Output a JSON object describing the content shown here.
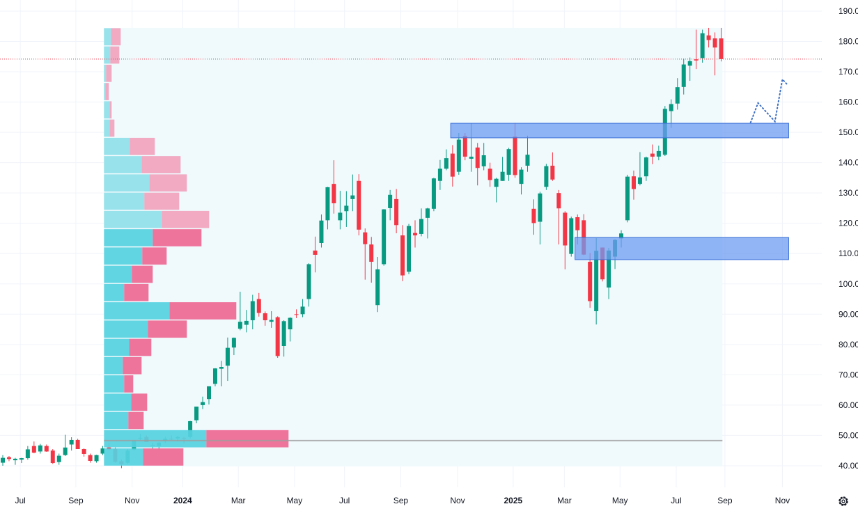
{
  "chart_data": {
    "type": "candlestick",
    "interval": "weekly",
    "title": "",
    "colors": {
      "up": "#089981",
      "down": "#f23645",
      "zone": "#6d9cf2",
      "zone_border": "#3b6fd6",
      "profile_up": "#56d1e0",
      "profile_down": "#ee6d97",
      "profile_up_light": "#90dfe9",
      "profile_down_light": "#f0a5bf",
      "profile_bg": "#f0fafd",
      "projection": "#3d6fc4",
      "poc": "#9e9e9e"
    },
    "y_axis": {
      "min": 40,
      "max": 190,
      "step": 10,
      "tick_labels": [
        "40.00",
        "50.00",
        "60.00",
        "70.00",
        "80.00",
        "90.00",
        "100.00",
        "110.00",
        "120.00",
        "130.00",
        "140.00",
        "150.00",
        "160.00",
        "170.00",
        "180.00",
        "190.00"
      ]
    },
    "x_axis": {
      "ticks": [
        {
          "label": "Jul",
          "week": 2.8,
          "year": false
        },
        {
          "label": "Sep",
          "week": 11.7,
          "year": false
        },
        {
          "label": "Nov",
          "week": 20.7,
          "year": false
        },
        {
          "label": "2024",
          "week": 28.8,
          "year": true
        },
        {
          "label": "Mar",
          "week": 37.7,
          "year": false
        },
        {
          "label": "May",
          "week": 46.7,
          "year": false
        },
        {
          "label": "Jul",
          "week": 54.7,
          "year": false
        },
        {
          "label": "Sep",
          "week": 63.7,
          "year": false
        },
        {
          "label": "Nov",
          "week": 72.8,
          "year": false
        },
        {
          "label": "2025",
          "week": 81.7,
          "year": true
        },
        {
          "label": "Mar",
          "week": 89.9,
          "year": false
        },
        {
          "label": "May",
          "week": 98.8,
          "year": false
        },
        {
          "label": "Jul",
          "week": 107.8,
          "year": false
        },
        {
          "label": "Sep",
          "week": 115.6,
          "year": false
        },
        {
          "label": "Nov",
          "week": 124.8,
          "year": false
        }
      ]
    },
    "candles_ohlc": [
      [
        41.0,
        43.5,
        40.0,
        42.6
      ],
      [
        42.8,
        43.2,
        41.5,
        42.2
      ],
      [
        41.8,
        42.6,
        40.3,
        42.3
      ],
      [
        42.0,
        42.6,
        40.9,
        42.5
      ],
      [
        42.5,
        46.5,
        42.0,
        45.4
      ],
      [
        46.5,
        48.0,
        44.1,
        44.3
      ],
      [
        44.7,
        47.2,
        44.0,
        46.7
      ],
      [
        46.5,
        47.0,
        44.6,
        44.7
      ],
      [
        45.0,
        45.5,
        40.6,
        40.9
      ],
      [
        41.2,
        44.0,
        40.3,
        43.3
      ],
      [
        43.5,
        50.2,
        43.2,
        46.0
      ],
      [
        47.0,
        49.4,
        45.0,
        48.5
      ],
      [
        48.5,
        48.9,
        45.5,
        45.5
      ],
      [
        45.5,
        45.7,
        43.0,
        43.9
      ],
      [
        43.5,
        44.0,
        41.0,
        41.6
      ],
      [
        41.5,
        43.6,
        41.0,
        43.5
      ],
      [
        44.0,
        46.5,
        43.5,
        45.7
      ],
      [
        46.0,
        47.6,
        45.0,
        45.4
      ],
      [
        45.5,
        46.0,
        41.0,
        41.3
      ],
      [
        41.5,
        42.0,
        39.2,
        40.5
      ],
      [
        41.0,
        45.5,
        40.6,
        45.0
      ],
      [
        45.3,
        48.4,
        45.0,
        48.3
      ],
      [
        49.0,
        50.5,
        48.5,
        49.2
      ],
      [
        49.5,
        50.0,
        47.8,
        47.8
      ],
      [
        46.8,
        47.6,
        45.5,
        46.8
      ],
      [
        46.5,
        47.9,
        45.2,
        47.6
      ],
      [
        48.2,
        49.5,
        47.5,
        48.9
      ],
      [
        48.9,
        50.0,
        48.4,
        48.8
      ],
      [
        49.0,
        49.8,
        48.0,
        49.5
      ],
      [
        49.2,
        49.5,
        47.3,
        49.0
      ],
      [
        49.5,
        54.8,
        49.0,
        54.7
      ],
      [
        55.0,
        59.5,
        54.0,
        59.5
      ],
      [
        60.0,
        62.8,
        58.7,
        61.0
      ],
      [
        62.0,
        66.2,
        60.2,
        66.2
      ],
      [
        67.0,
        72.2,
        66.2,
        72.1
      ],
      [
        72.0,
        74.6,
        66.2,
        72.6
      ],
      [
        73.0,
        82.3,
        68.0,
        78.9
      ],
      [
        79.0,
        82.3,
        76.5,
        82.2
      ],
      [
        85.2,
        97.4,
        84.7,
        87.5
      ],
      [
        86.5,
        91.4,
        84.0,
        87.8
      ],
      [
        88.0,
        96.4,
        85.0,
        94.3
      ],
      [
        95.0,
        97.0,
        89.2,
        90.4
      ],
      [
        90.3,
        90.9,
        86.2,
        88.0
      ],
      [
        87.5,
        91.0,
        85.5,
        88.1
      ],
      [
        89.0,
        89.3,
        75.6,
        76.2
      ],
      [
        79.5,
        88.0,
        76.0,
        87.7
      ],
      [
        85.0,
        89.0,
        81.0,
        88.8
      ],
      [
        90.0,
        91.6,
        88.7,
        89.8
      ],
      [
        90.0,
        95.0,
        89.0,
        92.5
      ],
      [
        95.0,
        106.8,
        92.5,
        106.5
      ],
      [
        111.0,
        115.6,
        103.8,
        109.6
      ],
      [
        113.5,
        122.9,
        112.0,
        120.9
      ],
      [
        121.0,
        132.0,
        118.0,
        131.9
      ],
      [
        133.0,
        140.8,
        123.2,
        126.6
      ],
      [
        121.0,
        130.7,
        118.0,
        123.5
      ],
      [
        124.0,
        130.6,
        118.8,
        125.8
      ],
      [
        128.0,
        136.1,
        124.0,
        129.2
      ],
      [
        134.0,
        136.2,
        116.0,
        117.9
      ],
      [
        117.0,
        118.3,
        101.4,
        113.1
      ],
      [
        113.0,
        115.5,
        100.4,
        107.3
      ],
      [
        93.0,
        108.9,
        90.7,
        104.8
      ],
      [
        106.5,
        124.7,
        106.0,
        124.6
      ],
      [
        125.0,
        131.0,
        121.0,
        129.4
      ],
      [
        128.0,
        131.3,
        116.7,
        119.4
      ],
      [
        116.0,
        119.4,
        100.9,
        102.8
      ],
      [
        104.0,
        119.8,
        103.2,
        119.1
      ],
      [
        116.8,
        121.0,
        112.0,
        116.0
      ],
      [
        116.5,
        124.9,
        115.7,
        121.4
      ],
      [
        121.8,
        125.1,
        115.0,
        124.9
      ],
      [
        124.8,
        135.0,
        124.0,
        134.8
      ],
      [
        134.0,
        140.9,
        131.0,
        138.0
      ],
      [
        138.0,
        144.4,
        137.5,
        141.5
      ],
      [
        143.0,
        145.8,
        132.1,
        135.4
      ],
      [
        137.0,
        149.8,
        136.0,
        147.6
      ],
      [
        148.8,
        149.8,
        140.8,
        141.98
      ],
      [
        141.3,
        152.9,
        137.0,
        141.95
      ],
      [
        145.0,
        146.5,
        132.5,
        138.25
      ],
      [
        138.8,
        146.5,
        137.5,
        142.44
      ],
      [
        138.0,
        140.0,
        132.0,
        134.25
      ],
      [
        132.0,
        135.0,
        126.9,
        134.7
      ],
      [
        134.0,
        141.9,
        134.0,
        137.0
      ],
      [
        136.0,
        144.9,
        134.0,
        144.47
      ],
      [
        148.6,
        153.1,
        135.0,
        135.91
      ],
      [
        133.0,
        138.5,
        129.5,
        137.71
      ],
      [
        139.0,
        148.9,
        137.0,
        142.62
      ],
      [
        124.8,
        127.9,
        116.2,
        120.07
      ],
      [
        120.5,
        130.4,
        113.0,
        129.84
      ],
      [
        132.0,
        139.6,
        131.0,
        138.85
      ],
      [
        139.0,
        143.4,
        134.0,
        134.43
      ],
      [
        130.0,
        131.0,
        113.0,
        124.92
      ],
      [
        123.5,
        124.0,
        104.8,
        112.69
      ],
      [
        109.9,
        122.2,
        109.0,
        121.67
      ],
      [
        122.0,
        122.9,
        113.0,
        117.7
      ],
      [
        121.0,
        123.0,
        109.5,
        109.67
      ],
      [
        107.3,
        110.2,
        92.1,
        94.31
      ],
      [
        91.0,
        115.1,
        86.6,
        110.93
      ],
      [
        112.0,
        112.0,
        100.8,
        101.49
      ],
      [
        98.8,
        111.9,
        95.0,
        111.01
      ],
      [
        109.0,
        114.7,
        104.9,
        114.5
      ],
      [
        115.0,
        117.7,
        112.0,
        116.65
      ],
      [
        121.0,
        136.0,
        120.3,
        135.4
      ],
      [
        135.5,
        137.4,
        127.8,
        131.29
      ],
      [
        133.0,
        143.5,
        132.5,
        135.13
      ],
      [
        135.5,
        142.0,
        134.0,
        141.72
      ],
      [
        143.0,
        146.0,
        139.5,
        141.97
      ],
      [
        142.0,
        145.6,
        140.8,
        143.85
      ],
      [
        142.6,
        158.7,
        142.2,
        157.75
      ],
      [
        157.0,
        160.9,
        151.5,
        159.34
      ],
      [
        159.5,
        167.9,
        157.5,
        164.92
      ],
      [
        165.0,
        174.3,
        162.5,
        172.41
      ],
      [
        172.0,
        174.7,
        167.0,
        173.5
      ],
      [
        174.1,
        183.9,
        170.9,
        173.72
      ],
      [
        174.5,
        183.9,
        173.0,
        182.7
      ],
      [
        182.0,
        184.5,
        178.0,
        180.45
      ],
      [
        181.0,
        183.0,
        168.8,
        177.99
      ],
      [
        181.0,
        184.5,
        173.4,
        174.18
      ]
    ],
    "last_price": 174.18,
    "zones": [
      {
        "name": "resistance-zone",
        "price_low": 148.2,
        "price_high": 153.0,
        "start_week": 71.7,
        "end_week": 125.8
      },
      {
        "name": "support-zone",
        "price_low": 108.0,
        "price_high": 115.3,
        "start_week": 91.6,
        "end_week": 125.8
      }
    ],
    "projection_path": [
      [
        119.7,
        153.2
      ],
      [
        120.9,
        159.7
      ],
      [
        123.6,
        153.6
      ],
      [
        124.8,
        167.5
      ],
      [
        125.7,
        165.5
      ]
    ],
    "volume_profile": {
      "start_week": 16.2,
      "end_week": 115.2,
      "price_top": 184.5,
      "price_bottom": 39.8,
      "poc_price": 48.3,
      "rows": [
        {
          "up": 10,
          "down": 14,
          "value_area": false
        },
        {
          "up": 9,
          "down": 13,
          "value_area": false
        },
        {
          "up": 3,
          "down": 8,
          "value_area": false
        },
        {
          "up": 2,
          "down": 5,
          "value_area": false
        },
        {
          "up": 8,
          "down": 3,
          "value_area": false
        },
        {
          "up": 8,
          "down": 7,
          "value_area": false
        },
        {
          "up": 37,
          "down": 36,
          "value_area": false
        },
        {
          "up": 54,
          "down": 56,
          "value_area": false
        },
        {
          "up": 65,
          "down": 54,
          "value_area": false
        },
        {
          "up": 58,
          "down": 50,
          "value_area": false
        },
        {
          "up": 83,
          "down": 68,
          "value_area": false
        },
        {
          "up": 70,
          "down": 70,
          "value_area": true
        },
        {
          "up": 55,
          "down": 35,
          "value_area": true
        },
        {
          "up": 40,
          "down": 30,
          "value_area": true
        },
        {
          "up": 29,
          "down": 35,
          "value_area": true
        },
        {
          "up": 94,
          "down": 96,
          "value_area": true
        },
        {
          "up": 63,
          "down": 56,
          "value_area": true
        },
        {
          "up": 36,
          "down": 32,
          "value_area": true
        },
        {
          "up": 27,
          "down": 27,
          "value_area": true
        },
        {
          "up": 29,
          "down": 13,
          "value_area": true
        },
        {
          "up": 39,
          "down": 23,
          "value_area": true
        },
        {
          "up": 35,
          "down": 22,
          "value_area": true
        },
        {
          "up": 147,
          "down": 118,
          "value_area": true
        },
        {
          "up": 56,
          "down": 58,
          "value_area": true
        }
      ]
    }
  }
}
